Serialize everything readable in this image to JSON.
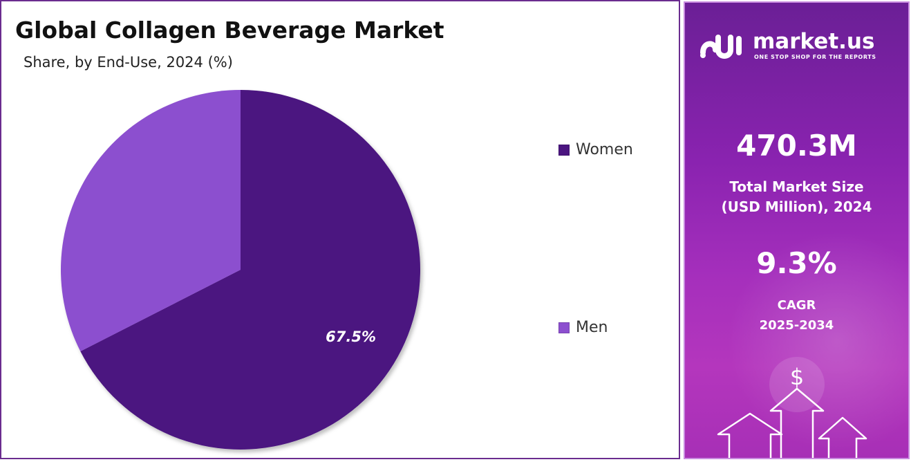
{
  "chart_data": {
    "type": "pie",
    "title": "Global Collagen Beverage Market",
    "subtitle": "Share, by End-Use, 2024 (%)",
    "categories": [
      "Women",
      "Men"
    ],
    "values": [
      67.5,
      32.5
    ],
    "data_labels": [
      "67.5%",
      ""
    ],
    "colors": [
      "#4b1580",
      "#8c4fcf"
    ],
    "start_angle_deg": 0,
    "direction": "clockwise",
    "legend_position": "right"
  },
  "legend": {
    "items": [
      {
        "label": "Women",
        "color": "#4b1580"
      },
      {
        "label": "Men",
        "color": "#8c4fcf"
      }
    ]
  },
  "sidebar": {
    "brand_name": "market.us",
    "brand_tagline": "ONE STOP SHOP FOR THE REPORTS",
    "market_size_value": "470.3M",
    "market_size_label_1": "Total Market Size",
    "market_size_label_2": "(USD Million), 2024",
    "cagr_value": "9.3%",
    "cagr_label": "CAGR",
    "cagr_period": "2025-2034",
    "currency_symbol": "$",
    "icon": "dollar-growth-arrows-icon"
  }
}
